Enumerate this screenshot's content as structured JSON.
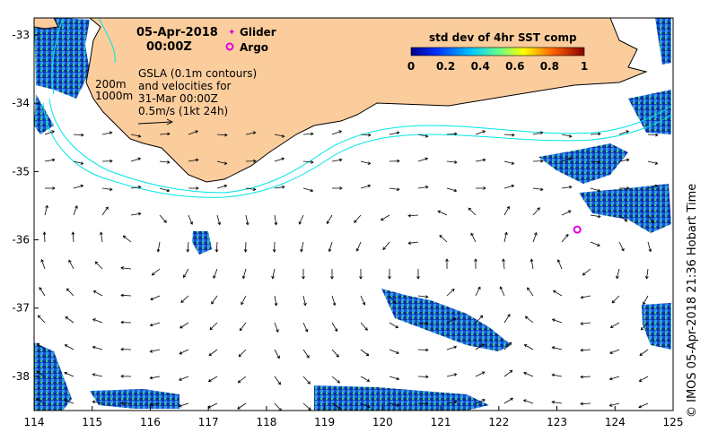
{
  "header": {
    "date": "05-Apr-2018",
    "time": "00:00Z"
  },
  "legend": {
    "glider_label": "Glider",
    "argo_label": "Argo",
    "glider_color": "#e000e0",
    "argo_color": "#e000e0"
  },
  "colorbar": {
    "title": "std dev of 4hr SST comp",
    "ticks": [
      "0",
      "0.2",
      "0.4",
      "0.6",
      "0.8",
      "1"
    ]
  },
  "annotation": {
    "line1": "GSLA (0.1m contours)",
    "line2": "and velocities for",
    "line3": "31-Mar 00:00Z",
    "line4": "0.5m/s (1kt 24h)"
  },
  "contours": {
    "label_200": "200m",
    "label_1000": "1000m",
    "color": "#00e5e5"
  },
  "axes": {
    "x_ticks": [
      "114",
      "115",
      "116",
      "117",
      "118",
      "119",
      "120",
      "121",
      "122",
      "123",
      "124",
      "125"
    ],
    "y_ticks": [
      "-33",
      "-34",
      "-35",
      "-36",
      "-37",
      "-38"
    ]
  },
  "side_label": "© IMOS 05-Apr-2018 21:36 Hobart Time",
  "colors": {
    "land": "#fbcd9d",
    "coast": "#000000"
  },
  "argo_float": {
    "lon": 123.35,
    "lat": -35.85
  }
}
